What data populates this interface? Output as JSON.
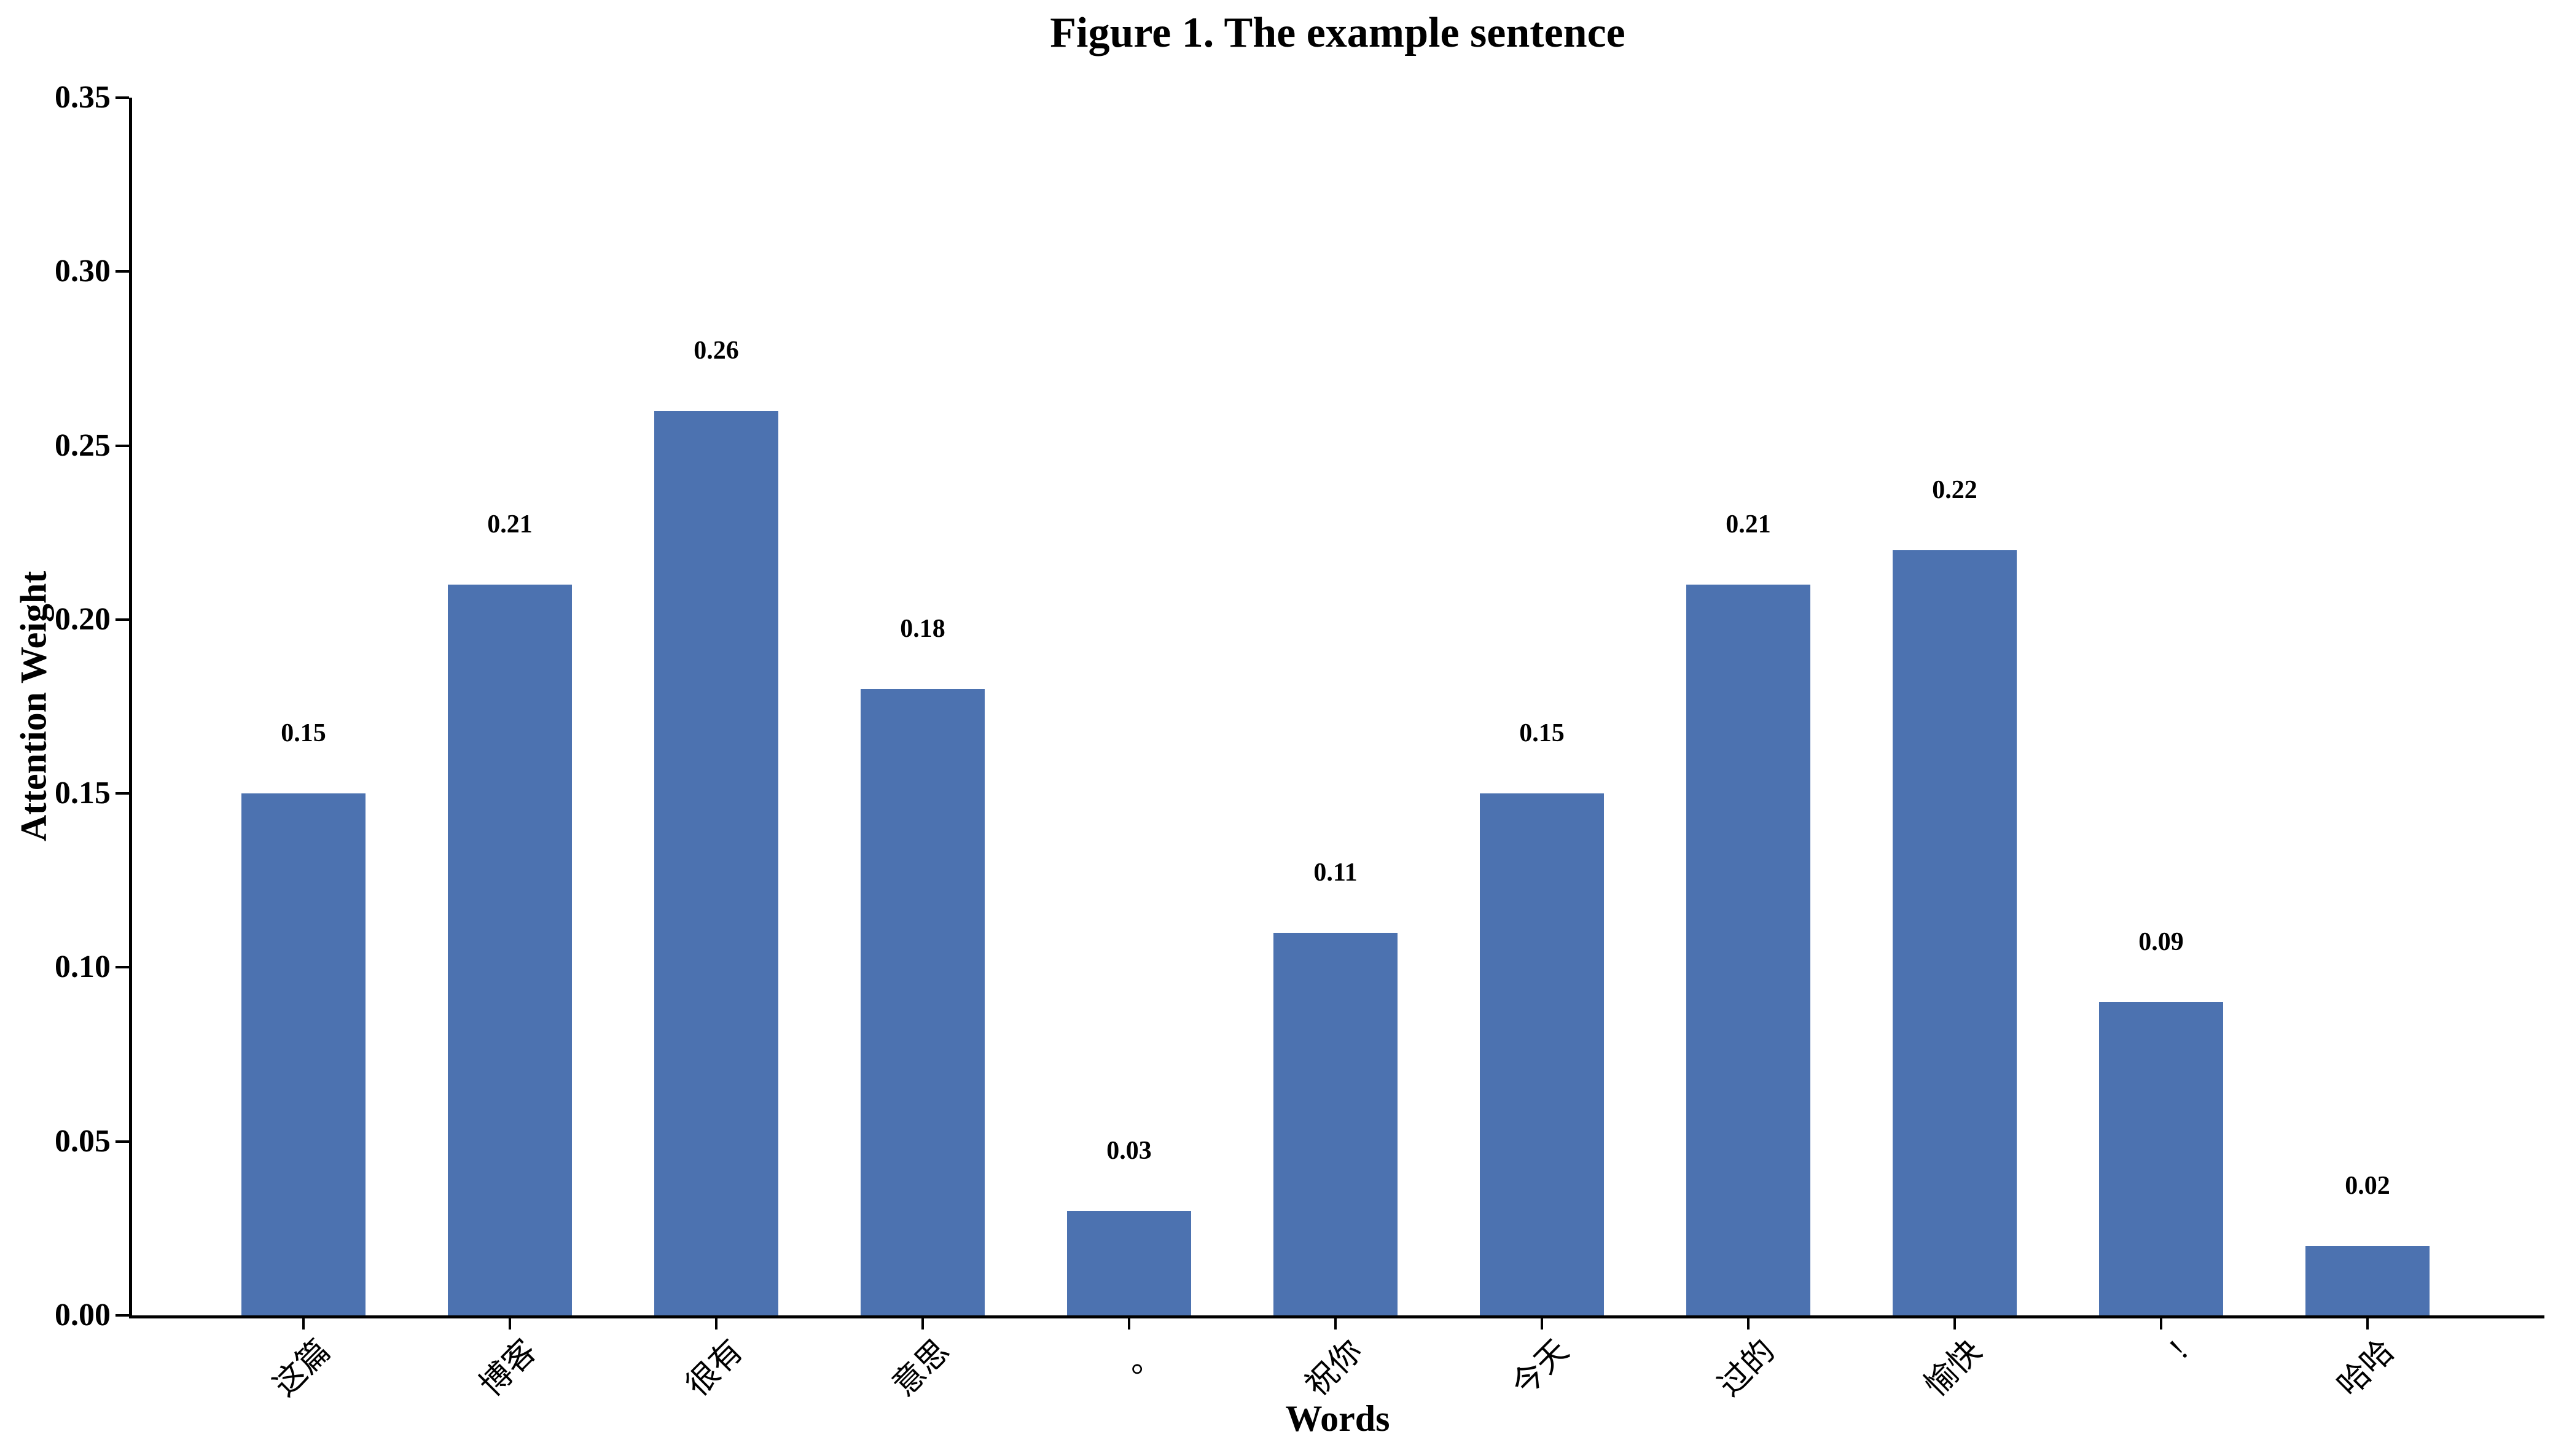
{
  "figure": {
    "title": "Figure 1. The example sentence"
  },
  "chart_data": {
    "type": "bar",
    "title": "Figure 1. The example sentence",
    "xlabel": "Words",
    "ylabel": "Attention Weight",
    "categories": [
      "这篇",
      "博客",
      "很有",
      "意思",
      "。",
      "祝你",
      "今天",
      "过的",
      "愉快",
      "!",
      "哈哈"
    ],
    "values": [
      0.15,
      0.21,
      0.26,
      0.18,
      0.03,
      0.11,
      0.15,
      0.21,
      0.22,
      0.09,
      0.02
    ],
    "bar_value_labels": [
      "0.15",
      "0.21",
      "0.26",
      "0.18",
      "0.03",
      "0.11",
      "0.15",
      "0.21",
      "0.22",
      "0.09",
      "0.02"
    ],
    "ylim": [
      0.0,
      0.35
    ],
    "yticks": [
      0.0,
      0.05,
      0.1,
      0.15,
      0.2,
      0.25,
      0.3,
      0.35
    ],
    "ytick_labels": [
      "0.00",
      "0.05",
      "0.10",
      "0.15",
      "0.20",
      "0.25",
      "0.30",
      "0.35"
    ],
    "grid": false,
    "legend": null,
    "bar_color": "#4c72b0",
    "axis_color": "#000000",
    "text_color": "#000000"
  }
}
